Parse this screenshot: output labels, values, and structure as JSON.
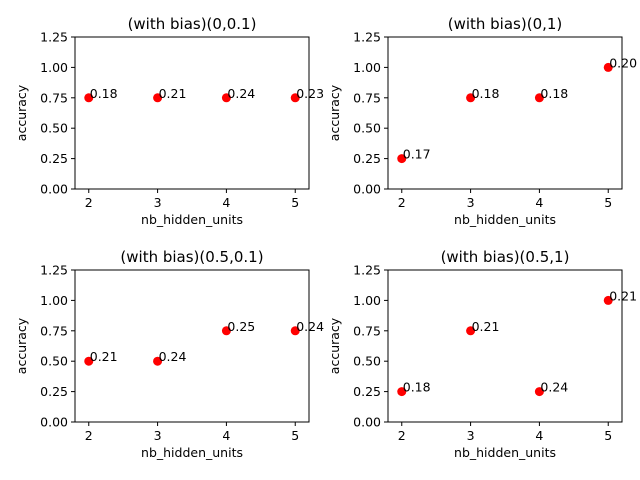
{
  "chart_data": [
    {
      "type": "scatter",
      "title": "(with bias)(0,0.1)",
      "xlabel": "nb_hidden_units",
      "ylabel": "accuracy",
      "x": [
        2,
        3,
        4,
        5
      ],
      "y": [
        0.75,
        0.75,
        0.75,
        0.75
      ],
      "labels": [
        "0.18",
        "0.21",
        "0.24",
        "0.23"
      ],
      "xticks": [
        "2",
        "3",
        "4",
        "5"
      ],
      "yticks": [
        "0.00",
        "0.25",
        "0.50",
        "0.75",
        "1.00",
        "1.25"
      ],
      "xlim": [
        1.8,
        5.2
      ],
      "ylim": [
        0,
        1.25
      ],
      "color": "#ff0000",
      "grid": false
    },
    {
      "type": "scatter",
      "title": "(with bias)(0,1)",
      "xlabel": "nb_hidden_units",
      "ylabel": "accuracy",
      "x": [
        2,
        3,
        4,
        5
      ],
      "y": [
        0.25,
        0.75,
        0.75,
        1.0
      ],
      "labels": [
        "0.17",
        "0.18",
        "0.18",
        "0.20"
      ],
      "xticks": [
        "2",
        "3",
        "4",
        "5"
      ],
      "yticks": [
        "0.00",
        "0.25",
        "0.50",
        "0.75",
        "1.00",
        "1.25"
      ],
      "xlim": [
        1.8,
        5.2
      ],
      "ylim": [
        0,
        1.25
      ],
      "color": "#ff0000",
      "grid": false
    },
    {
      "type": "scatter",
      "title": "(with bias)(0.5,0.1)",
      "xlabel": "nb_hidden_units",
      "ylabel": "accuracy",
      "x": [
        2,
        3,
        4,
        5
      ],
      "y": [
        0.5,
        0.5,
        0.75,
        0.75
      ],
      "labels": [
        "0.21",
        "0.24",
        "0.25",
        "0.24"
      ],
      "xticks": [
        "2",
        "3",
        "4",
        "5"
      ],
      "yticks": [
        "0.00",
        "0.25",
        "0.50",
        "0.75",
        "1.00",
        "1.25"
      ],
      "xlim": [
        1.8,
        5.2
      ],
      "ylim": [
        0,
        1.25
      ],
      "color": "#ff0000",
      "grid": false
    },
    {
      "type": "scatter",
      "title": "(with bias)(0.5,1)",
      "xlabel": "nb_hidden_units",
      "ylabel": "accuracy",
      "x": [
        2,
        3,
        4,
        5
      ],
      "y": [
        0.25,
        0.75,
        0.25,
        1.0
      ],
      "labels": [
        "0.18",
        "0.21",
        "0.24",
        "0.21"
      ],
      "xticks": [
        "2",
        "3",
        "4",
        "5"
      ],
      "yticks": [
        "0.00",
        "0.25",
        "0.50",
        "0.75",
        "1.00",
        "1.25"
      ],
      "xlim": [
        1.8,
        5.2
      ],
      "ylim": [
        0,
        1.25
      ],
      "color": "#ff0000",
      "grid": false
    }
  ]
}
